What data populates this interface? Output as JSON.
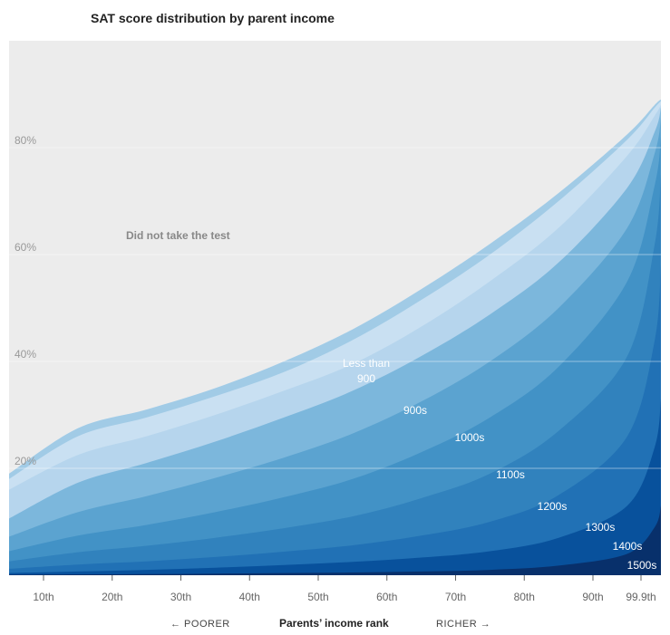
{
  "chart_data": {
    "type": "area",
    "title": "SAT score distribution by parent income",
    "xlabel": "Parents’ income rank",
    "x_direction_left": "← POORER",
    "x_direction_right": "RICHER →",
    "x": [
      1,
      15,
      25,
      35,
      45,
      55,
      65,
      75,
      85,
      95,
      99,
      99.9
    ],
    "x_ticks": [
      {
        "value": 10,
        "label": "10th"
      },
      {
        "value": 20,
        "label": "20th"
      },
      {
        "value": 30,
        "label": "30th"
      },
      {
        "value": 40,
        "label": "40th"
      },
      {
        "value": 50,
        "label": "50th"
      },
      {
        "value": 60,
        "label": "60th"
      },
      {
        "value": 70,
        "label": "70th"
      },
      {
        "value": 80,
        "label": "80th"
      },
      {
        "value": 90,
        "label": "90th"
      },
      {
        "value": 99.9,
        "label": "99.9th"
      }
    ],
    "y_ticks": [
      {
        "value": 20,
        "label": "20%"
      },
      {
        "value": 40,
        "label": "40%"
      },
      {
        "value": 60,
        "label": "60%"
      },
      {
        "value": 80,
        "label": "80%"
      }
    ],
    "ylim": [
      0,
      100
    ],
    "grid": true,
    "region_label": "Did not take the test",
    "series": [
      {
        "name": "1500s",
        "color": "#08306b",
        "values": [
          0.1,
          0.15,
          0.2,
          0.3,
          0.4,
          0.5,
          0.7,
          1.0,
          1.8,
          4.0,
          9.0,
          13.0
        ]
      },
      {
        "name": "1400s",
        "color": "#08519c",
        "values": [
          0.4,
          0.7,
          1.0,
          1.4,
          1.9,
          2.5,
          3.3,
          4.5,
          7.0,
          13.0,
          24.0,
          33.0
        ]
      },
      {
        "name": "1300s",
        "color": "#2171b5",
        "values": [
          1.2,
          2.0,
          2.6,
          3.4,
          4.4,
          5.6,
          7.4,
          10.0,
          15.0,
          26.0,
          44.0,
          58.0
        ]
      },
      {
        "name": "1200s",
        "color": "#3182bd",
        "values": [
          2.6,
          4.3,
          5.5,
          7.0,
          8.8,
          11.0,
          14.4,
          19.0,
          27.0,
          41.0,
          62.0,
          75.0
        ]
      },
      {
        "name": "1100s",
        "color": "#4292c6",
        "values": [
          4.5,
          7.4,
          9.4,
          11.8,
          14.6,
          18.0,
          23.0,
          29.5,
          39.0,
          55.0,
          73.0,
          82.0
        ]
      },
      {
        "name": "1000s",
        "color": "#5ba3d0",
        "values": [
          7.2,
          11.8,
          14.8,
          18.2,
          22.0,
          26.5,
          32.5,
          40.0,
          50.0,
          65.0,
          79.0,
          85.5
        ]
      },
      {
        "name": "900s",
        "color": "#7cb7dc",
        "values": [
          10.6,
          17.3,
          21.0,
          25.0,
          29.5,
          34.5,
          41.0,
          48.8,
          58.5,
          72.5,
          83.0,
          87.5
        ]
      },
      {
        "name": "Less than 900",
        "color": "#a1cbe6",
        "values": [
          19.0,
          27.5,
          31.0,
          35.0,
          40.0,
          46.0,
          53.5,
          62.0,
          71.5,
          82.5,
          88.0,
          89.0
        ]
      }
    ],
    "upper_bands": [
      {
        "color": "#b6d5ed",
        "values": [
          16.0,
          22.5,
          26.0,
          30.0,
          34.5,
          39.5,
          46.5,
          55.0,
          65.0,
          78.5,
          86.0,
          88.0
        ]
      },
      {
        "color": "#c9e0f2",
        "values": [
          18.0,
          26.0,
          29.5,
          33.5,
          38.0,
          44.0,
          51.5,
          60.0,
          70.0,
          81.5,
          87.5,
          88.7
        ]
      },
      {
        "color": "#d8e8f6",
        "values": [
          19.0,
          27.5,
          31.0,
          35.0,
          40.0,
          46.0,
          53.5,
          62.0,
          71.5,
          82.5,
          88.0,
          89.0
        ]
      }
    ]
  }
}
